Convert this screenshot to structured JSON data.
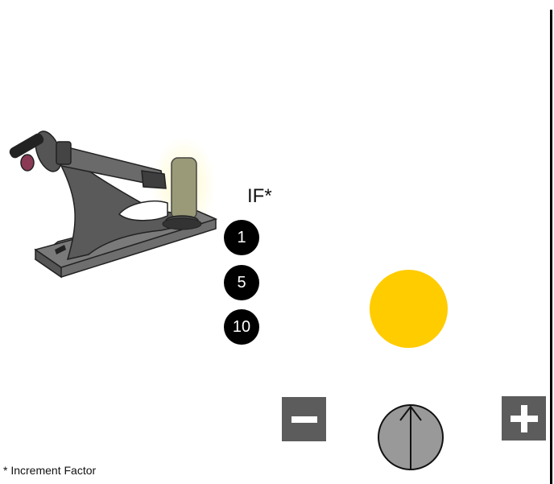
{
  "increment_factor": {
    "label": "IF*",
    "options": [
      "1",
      "5",
      "10"
    ]
  },
  "footnote": "* Increment Factor",
  "indicator": {
    "color": "#ffcc00"
  },
  "controls": {
    "minus_icon": "minus-icon",
    "plus_icon": "plus-icon",
    "knob_icon": "arrow-up-icon"
  }
}
